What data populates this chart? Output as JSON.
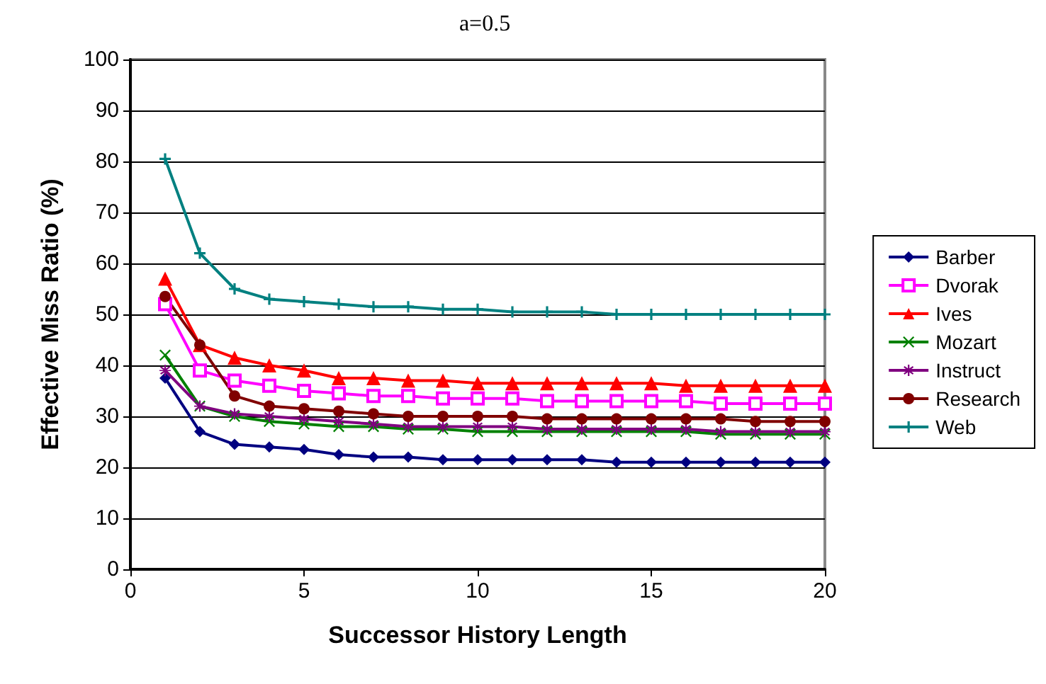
{
  "chart_data": {
    "type": "line",
    "title": "a=0.5",
    "xlabel": "Successor History Length",
    "ylabel": "Effective Miss Ratio (%)",
    "x": [
      1,
      2,
      3,
      4,
      5,
      6,
      7,
      8,
      9,
      10,
      11,
      12,
      13,
      14,
      15,
      16,
      17,
      18,
      19,
      20
    ],
    "series": [
      {
        "name": "Barber",
        "color": "#000080",
        "marker": "diamond",
        "values": [
          37.5,
          27,
          24.5,
          24,
          23.5,
          22.5,
          22,
          22,
          21.5,
          21.5,
          21.5,
          21.5,
          21.5,
          21,
          21,
          21,
          21,
          21,
          21,
          21
        ]
      },
      {
        "name": "Dvorak",
        "color": "#ff00ff",
        "marker": "square",
        "values": [
          52,
          39,
          37,
          36,
          35,
          34.5,
          34,
          34,
          33.5,
          33.5,
          33.5,
          33,
          33,
          33,
          33,
          33,
          32.5,
          32.5,
          32.5,
          32.5
        ]
      },
      {
        "name": "Ives",
        "color": "#ff0000",
        "marker": "triangle",
        "values": [
          57,
          44,
          41.5,
          40,
          39,
          37.5,
          37.5,
          37,
          37,
          36.5,
          36.5,
          36.5,
          36.5,
          36.5,
          36.5,
          36,
          36,
          36,
          36,
          36
        ]
      },
      {
        "name": "Mozart",
        "color": "#008000",
        "marker": "x",
        "values": [
          42,
          32,
          30,
          29,
          28.5,
          28,
          28,
          27.5,
          27.5,
          27,
          27,
          27,
          27,
          27,
          27,
          27,
          26.5,
          26.5,
          26.5,
          26.5
        ]
      },
      {
        "name": "Instruct",
        "color": "#800080",
        "marker": "star",
        "values": [
          39,
          32,
          30.5,
          30,
          29.5,
          29,
          28.5,
          28,
          28,
          28,
          28,
          27.5,
          27.5,
          27.5,
          27.5,
          27.5,
          27,
          27,
          27,
          27
        ]
      },
      {
        "name": "Research",
        "color": "#800000",
        "marker": "circle",
        "values": [
          53.5,
          44,
          34,
          32,
          31.5,
          31,
          30.5,
          30,
          30,
          30,
          30,
          29.5,
          29.5,
          29.5,
          29.5,
          29.5,
          29.5,
          29,
          29,
          29
        ]
      },
      {
        "name": "Web",
        "color": "#008080",
        "marker": "cross",
        "values": [
          80.5,
          62,
          55,
          53,
          52.5,
          52,
          51.5,
          51.5,
          51,
          51,
          50.5,
          50.5,
          50.5,
          50,
          50,
          50,
          50,
          50,
          50,
          50
        ]
      }
    ],
    "xlim": [
      0,
      20
    ],
    "xticks": [
      0,
      5,
      10,
      15,
      20
    ],
    "ylim": [
      0,
      100
    ],
    "yticks": [
      0,
      10,
      20,
      30,
      40,
      50,
      60,
      70,
      80,
      90,
      100
    ],
    "grid": "y",
    "legend": "right",
    "line_style": "solid"
  }
}
